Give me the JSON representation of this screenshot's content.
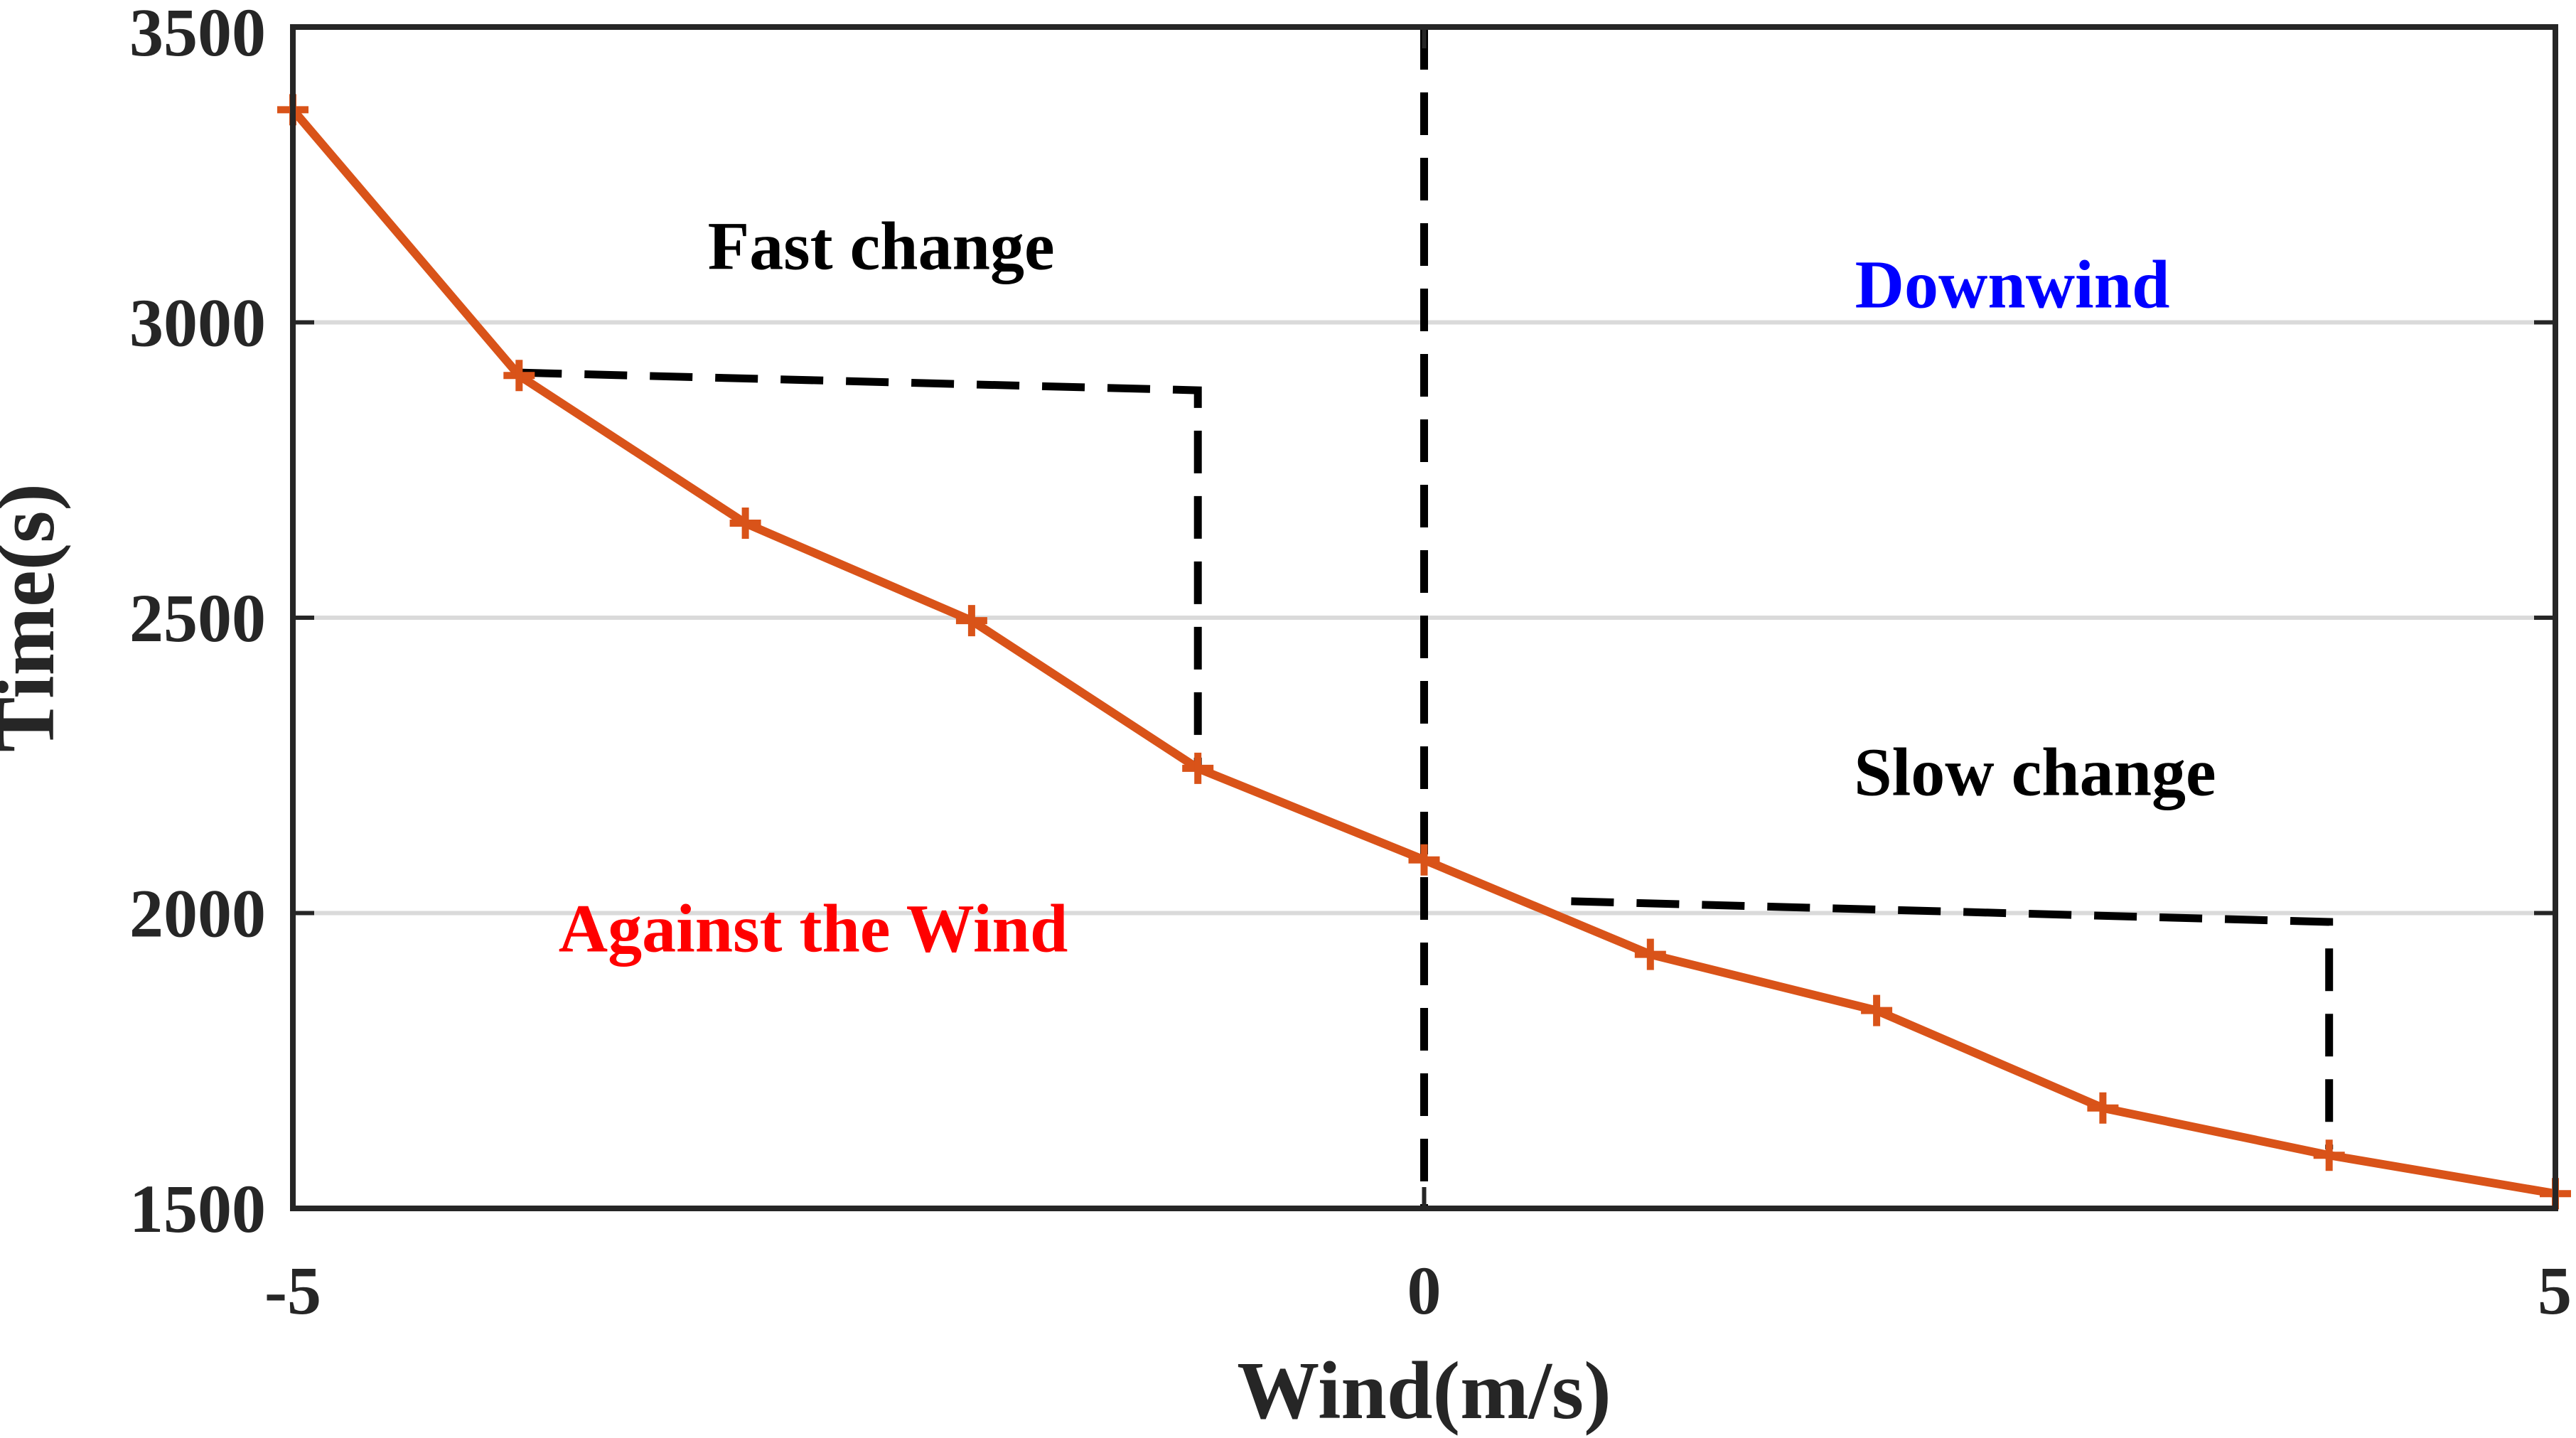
{
  "chart_data": {
    "type": "line",
    "xlabel": "Wind(m/s)",
    "ylabel": "Time(s)",
    "xlim": [
      -5,
      5
    ],
    "ylim": [
      1500,
      3500
    ],
    "xticks": [
      "-5",
      "0",
      "5"
    ],
    "yticks": [
      "1500",
      "2000",
      "2500",
      "3000",
      "3500"
    ],
    "grid": "horizontal",
    "series": [
      {
        "x": [
          -5,
          -4,
          -3,
          -2,
          -1,
          0,
          1,
          2,
          3,
          4,
          5
        ],
        "y": [
          3360,
          2910,
          2660,
          2495,
          2245,
          2090,
          1930,
          1835,
          1670,
          1590,
          1525
        ],
        "color": "#D95319",
        "marker": "plus"
      }
    ],
    "annotations": [
      {
        "text": "Fast change",
        "color": "#000000",
        "x": -2.4,
        "y": 3090
      },
      {
        "text": "Downwind",
        "color": "#0000FF",
        "x": 2.6,
        "y": 3025
      },
      {
        "text": "Slow change",
        "color": "#000000",
        "x": 2.7,
        "y": 2200
      },
      {
        "text": "Against the Wind",
        "color": "#FF0000",
        "x": -2.7,
        "y": 1935
      }
    ],
    "reference_lines": [
      {
        "points": [
          [
            0,
            3500
          ],
          [
            0,
            1500
          ]
        ]
      },
      {
        "points": [
          [
            -4,
            2915
          ],
          [
            -1,
            2885
          ],
          [
            -1,
            2250
          ]
        ]
      },
      {
        "points": [
          [
            0.65,
            2020
          ],
          [
            4,
            1985
          ],
          [
            4,
            1600
          ]
        ]
      }
    ]
  }
}
